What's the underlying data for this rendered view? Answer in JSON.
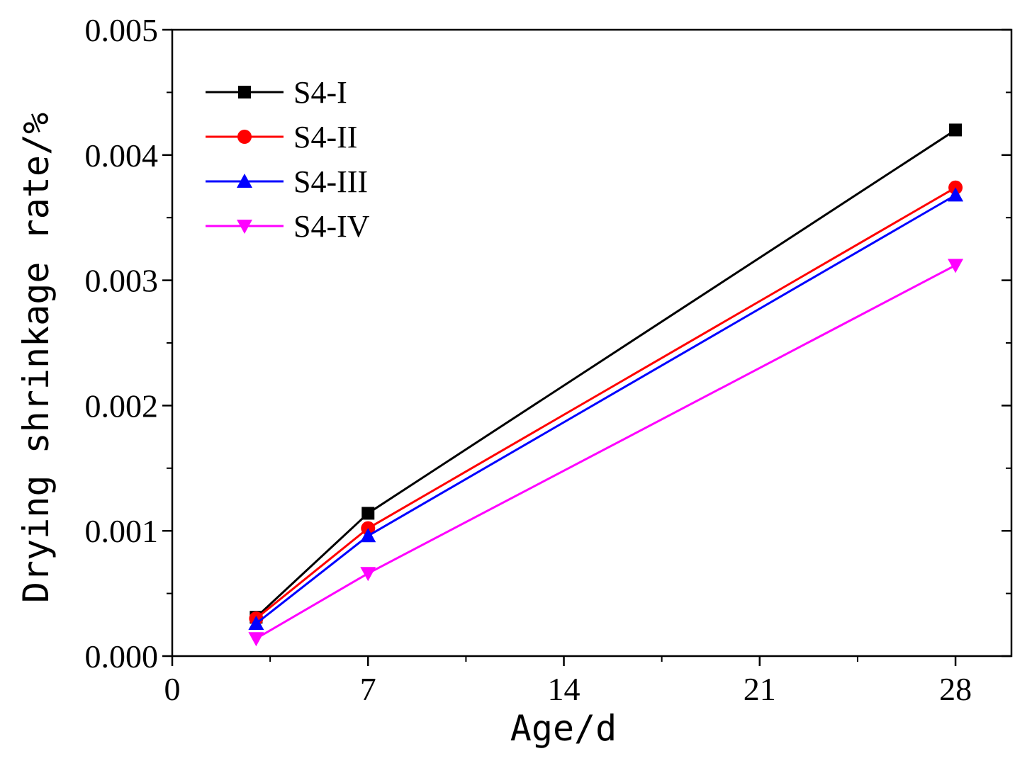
{
  "chart_data": {
    "type": "line",
    "title": "",
    "xlabel": "Age/d",
    "ylabel": "Drying shrinkage rate/%",
    "xlim": [
      0,
      30
    ],
    "ylim": [
      0,
      0.005
    ],
    "xticks": [
      0,
      7,
      14,
      21,
      28
    ],
    "xtick_labels": [
      "0",
      "7",
      "14",
      "21",
      "28"
    ],
    "yticks": [
      0,
      0.001,
      0.002,
      0.003,
      0.004,
      0.005
    ],
    "ytick_labels": [
      "0.000",
      "0.001",
      "0.002",
      "0.003",
      "0.004",
      "0.005"
    ],
    "grid": false,
    "legend_position": "top-left",
    "x": [
      3,
      7,
      28
    ],
    "series": [
      {
        "name": "S4-I",
        "color": "#000000",
        "marker": "square",
        "values": [
          0.00031,
          0.00114,
          0.0042
        ]
      },
      {
        "name": "S4-II",
        "color": "#ff0000",
        "marker": "circle",
        "values": [
          0.0003,
          0.00102,
          0.00374
        ]
      },
      {
        "name": "S4-III",
        "color": "#0000ff",
        "marker": "triangle-up",
        "values": [
          0.00026,
          0.00096,
          0.00368
        ]
      },
      {
        "name": "S4-IV",
        "color": "#ff00ff",
        "marker": "triangle-down",
        "values": [
          0.00014,
          0.00066,
          0.00312
        ]
      }
    ]
  }
}
